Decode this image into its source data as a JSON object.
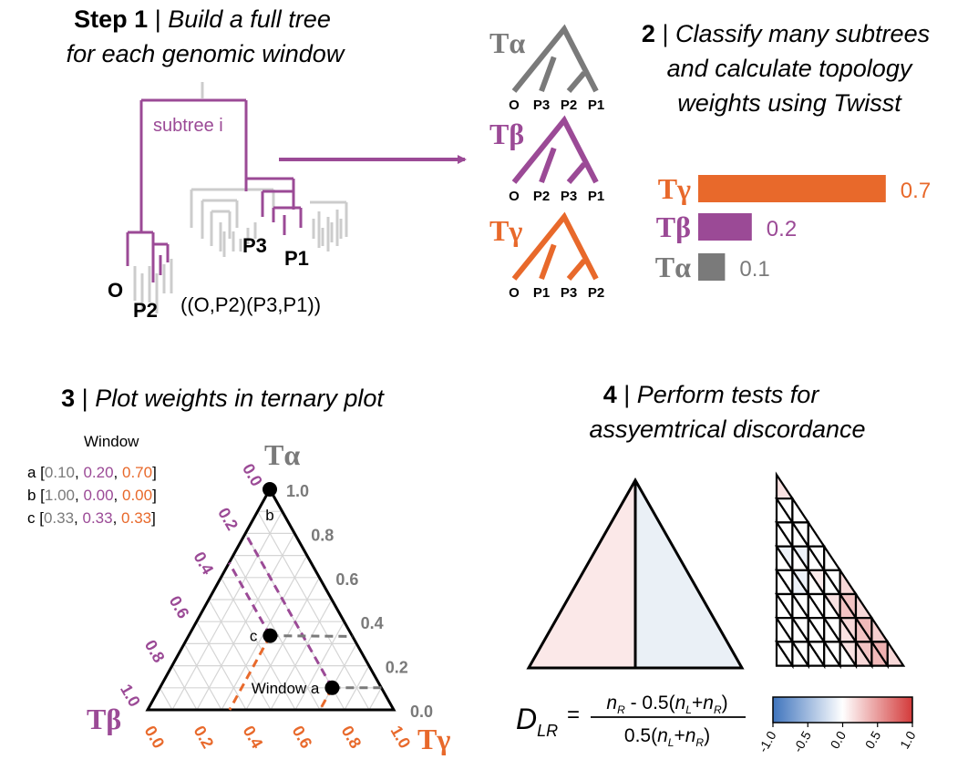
{
  "colors": {
    "alpha": "#7a7a7a",
    "beta": "#9b4a96",
    "gamma": "#e8692b",
    "light_tree": "#cccccc",
    "neg": "#4a7ec4",
    "pos": "#d63b3b"
  },
  "panel1": {
    "num": "Step 1",
    "sep": "|",
    "title_line1": "Build a full tree",
    "title_line2": "for each genomic window",
    "subtree_label": "subtree i",
    "tip_O": "O",
    "tip_P2": "P2",
    "tip_P3": "P3",
    "tip_P1": "P1",
    "newick": "((O,P2)(P3,P1))"
  },
  "panel2": {
    "num": "2",
    "sep": "|",
    "title_line1": "Classify many subtrees",
    "title_line2": "and calculate topology",
    "title_line3": "weights using Twisst",
    "topologies": [
      {
        "name": "Tα",
        "tips": [
          "O",
          "P3",
          "P2",
          "P1"
        ]
      },
      {
        "name": "Tβ",
        "tips": [
          "O",
          "P2",
          "P3",
          "P1"
        ]
      },
      {
        "name": "Tγ",
        "tips": [
          "O",
          "P1",
          "P3",
          "P2"
        ]
      }
    ],
    "weights": [
      {
        "name": "Tγ",
        "value": 0.7,
        "label": "0.7"
      },
      {
        "name": "Tβ",
        "value": 0.2,
        "label": "0.2"
      },
      {
        "name": "Tα",
        "value": 0.1,
        "label": "0.1"
      }
    ]
  },
  "panel3": {
    "num": "3",
    "sep": "|",
    "title": "Plot weights in ternary plot",
    "legend_title": "Window",
    "windows": [
      {
        "id": "a",
        "a": "0.10",
        "b": "0.20",
        "g": "0.70",
        "wa": 0.1,
        "wb": 0.2,
        "wg": 0.7
      },
      {
        "id": "b",
        "a": "1.00",
        "b": "0.00",
        "g": "0.00",
        "wa": 1.0,
        "wb": 0.0,
        "wg": 0.0
      },
      {
        "id": "c",
        "a": "0.33",
        "b": "0.33",
        "g": "0.33",
        "wa": 0.333,
        "wb": 0.333,
        "wg": 0.333
      }
    ],
    "bracket_open": "[",
    "bracket_close": "]",
    "comma": ",",
    "point_labels": {
      "a": "Window a",
      "b": "b",
      "c": "c"
    },
    "corner_alpha": "Tα",
    "corner_beta": "Tβ",
    "corner_gamma": "Tγ",
    "ticks_alpha": [
      "1.0",
      "0.8",
      "0.6",
      "0.4",
      "0.2",
      "0.0"
    ],
    "ticks_beta": [
      "0.0",
      "0.2",
      "0.4",
      "0.6",
      "0.8",
      "1.0"
    ],
    "ticks_gamma": [
      "0.0",
      "0.2",
      "0.4",
      "0.6",
      "0.8",
      "1.0"
    ]
  },
  "panel4": {
    "num": "4",
    "sep": "|",
    "title_line1": "Perform tests for",
    "title_line2": "assyemtrical discordance",
    "formula": {
      "D": "D",
      "D_sub": "LR",
      "eq": "=",
      "num_a": "n",
      "num_a_sub": "R",
      "num_mid": " - 0.5(",
      "num_b": "n",
      "num_b_sub": "L",
      "num_plus": "+",
      "num_c": "n",
      "num_c_sub": "R",
      "num_close": ")",
      "den_pre": "0.5(",
      "den_b": "n",
      "den_b_sub": "L",
      "den_plus": "+",
      "den_c": "n",
      "den_c_sub": "R",
      "den_close": ")"
    },
    "colorbar_ticks": [
      "-1.0",
      "-0.5",
      "0.0",
      "0.5",
      "1.0"
    ],
    "big_triangle": {
      "left_fill": "#fbe8e8",
      "right_fill": "#eaf0f6"
    },
    "sub_triangle_values": [
      [
        0.15
      ],
      [
        0.0,
        0.0,
        0.0
      ],
      [
        0.0,
        0.0,
        0.0,
        0.0,
        0.0
      ],
      [
        0.0,
        -0.1,
        0.0,
        -0.1,
        0.0,
        0.0,
        0.0
      ],
      [
        0.0,
        0.0,
        -0.1,
        -0.1,
        0.0,
        0.1,
        0.0,
        0.0,
        0.2
      ],
      [
        0.0,
        0.0,
        0.0,
        0.0,
        0.0,
        0.0,
        0.0,
        0.15,
        0.3,
        0.3,
        0.2
      ],
      [
        0.0,
        0.0,
        0.0,
        0.0,
        0.0,
        0.0,
        0.0,
        0.0,
        0.15,
        0.2,
        0.3,
        0.35,
        0.25
      ],
      [
        0.0,
        0.0,
        0.0,
        0.0,
        0.0,
        0.0,
        0.0,
        0.0,
        0.0,
        0.15,
        0.2,
        0.3,
        0.35,
        0.4,
        0.2
      ]
    ]
  }
}
